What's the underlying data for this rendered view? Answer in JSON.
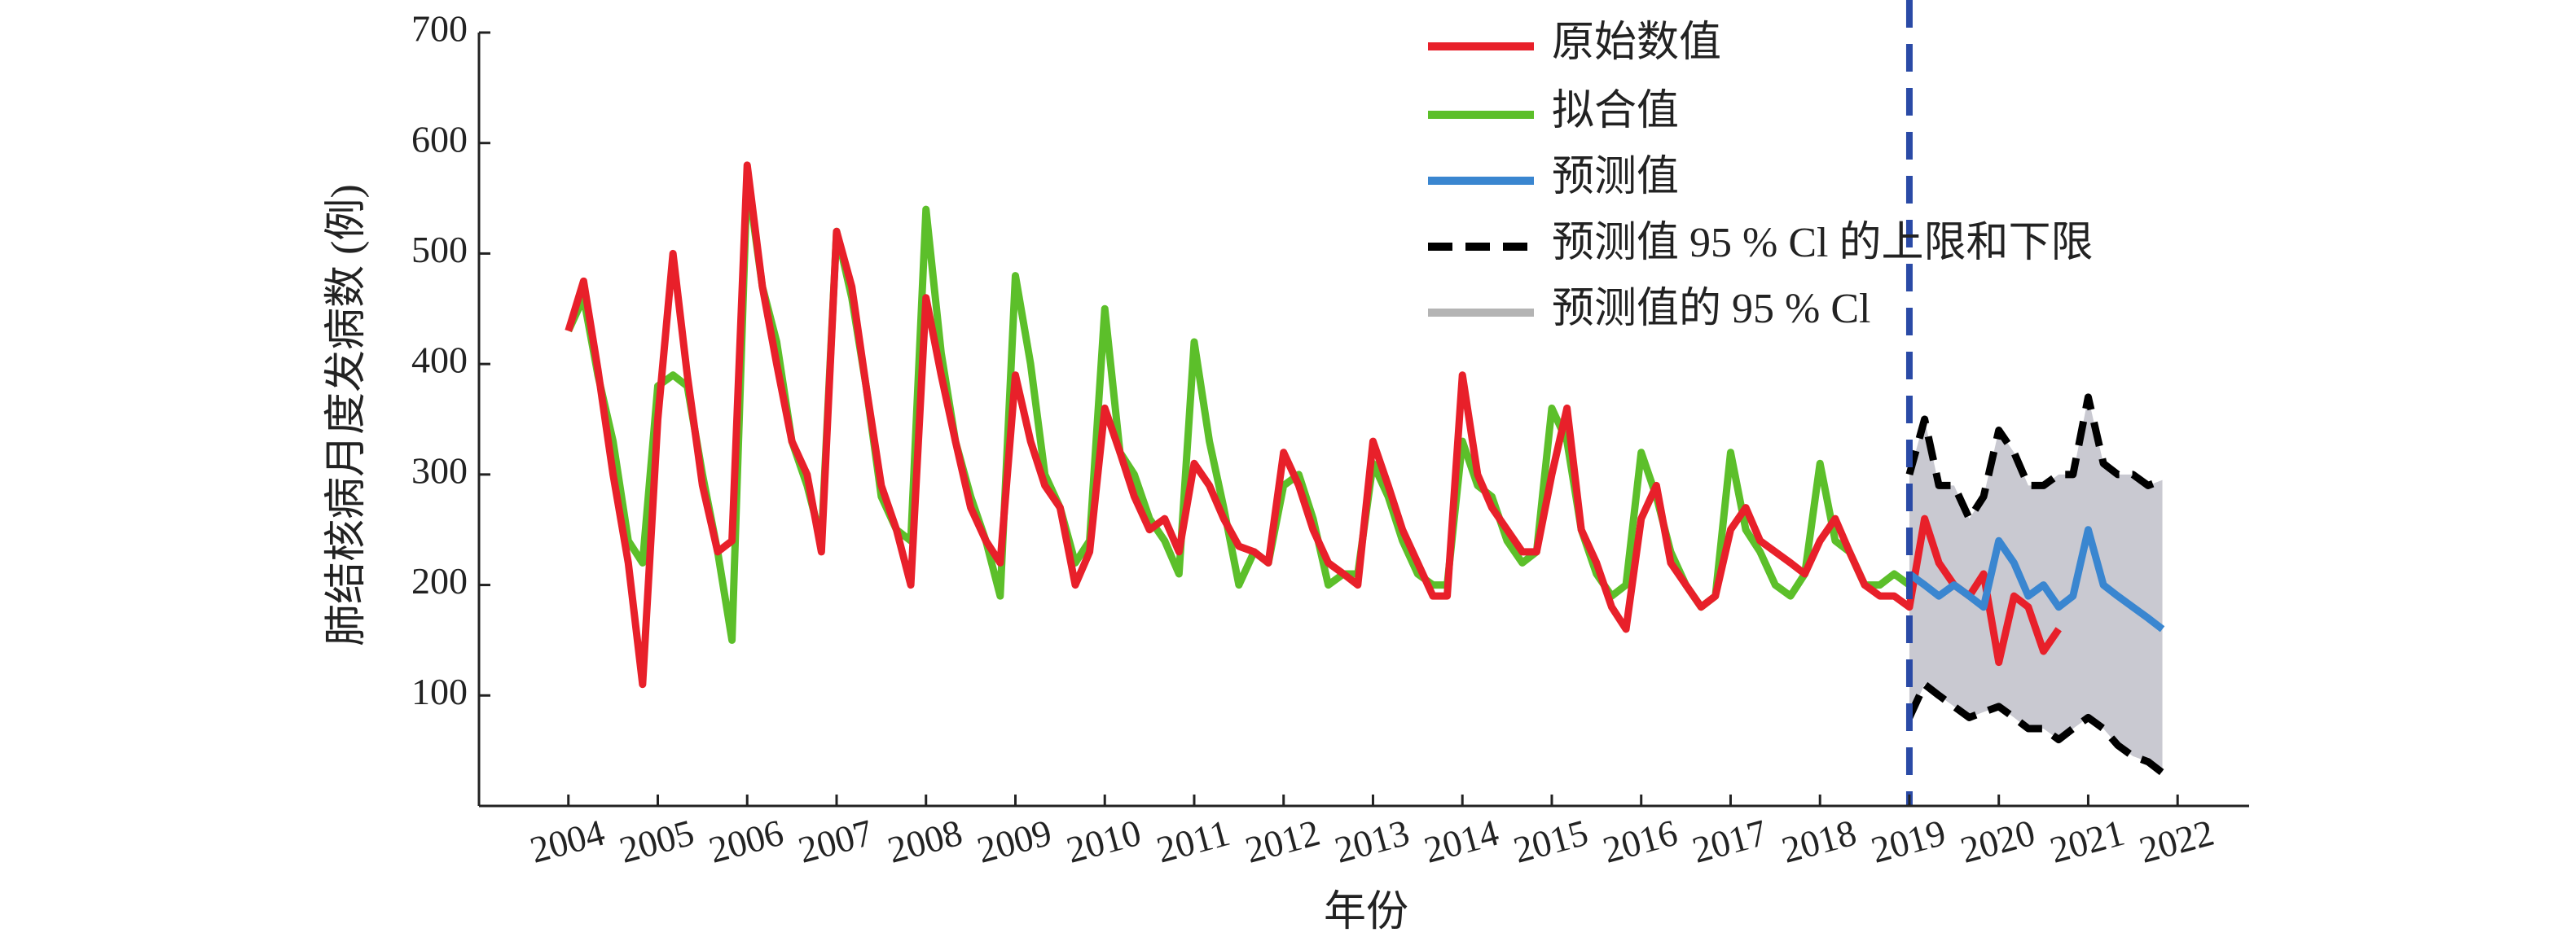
{
  "chart_data": {
    "type": "line",
    "ylabel": "肺结核病月度发病数 (例)",
    "xlabel": "年份",
    "xlim": [
      2003,
      2022.8
    ],
    "ylim": [
      0,
      700
    ],
    "xticks": [
      2004,
      2005,
      2006,
      2007,
      2008,
      2009,
      2010,
      2011,
      2012,
      2013,
      2014,
      2015,
      2016,
      2017,
      2018,
      2019,
      2020,
      2021,
      2022
    ],
    "yticks": [
      100,
      200,
      300,
      400,
      500,
      600,
      700
    ],
    "forecast_start": 2019,
    "forecast_line_color": "#2a4aa6",
    "x": [
      2004,
      2004.17,
      2004.33,
      2004.5,
      2004.67,
      2004.83,
      2005,
      2005.17,
      2005.33,
      2005.5,
      2005.67,
      2005.83,
      2006,
      2006.17,
      2006.33,
      2006.5,
      2006.67,
      2006.83,
      2007,
      2007.17,
      2007.33,
      2007.5,
      2007.67,
      2007.83,
      2008,
      2008.17,
      2008.33,
      2008.5,
      2008.67,
      2008.83,
      2009,
      2009.17,
      2009.33,
      2009.5,
      2009.67,
      2009.83,
      2010,
      2010.17,
      2010.33,
      2010.5,
      2010.67,
      2010.83,
      2011,
      2011.17,
      2011.33,
      2011.5,
      2011.67,
      2011.83,
      2012,
      2012.17,
      2012.33,
      2012.5,
      2012.67,
      2012.83,
      2013,
      2013.17,
      2013.33,
      2013.5,
      2013.67,
      2013.83,
      2014,
      2014.17,
      2014.33,
      2014.5,
      2014.67,
      2014.83,
      2015,
      2015.17,
      2015.33,
      2015.5,
      2015.67,
      2015.83,
      2016,
      2016.17,
      2016.33,
      2016.5,
      2016.67,
      2016.83,
      2017,
      2017.17,
      2017.33,
      2017.5,
      2017.67,
      2017.83,
      2018,
      2018.17,
      2018.33,
      2018.5,
      2018.67,
      2018.83,
      2019,
      2019.17,
      2019.33,
      2019.5,
      2019.67,
      2019.83,
      2020,
      2020.17,
      2020.33,
      2020.5,
      2020.67,
      2020.83,
      2021,
      2021.17,
      2021.33,
      2021.5,
      2021.67,
      2021.83
    ],
    "series": [
      {
        "name": "原始数值",
        "color": "#e8202a",
        "values": [
          430,
          475,
          395,
          300,
          220,
          110,
          350,
          500,
          390,
          290,
          230,
          240,
          580,
          470,
          400,
          330,
          300,
          230,
          520,
          470,
          380,
          290,
          250,
          200,
          460,
          390,
          330,
          270,
          240,
          220,
          390,
          330,
          290,
          270,
          200,
          230,
          360,
          320,
          280,
          250,
          260,
          230,
          310,
          290,
          260,
          235,
          230,
          220,
          320,
          290,
          250,
          220,
          210,
          200,
          330,
          290,
          250,
          220,
          190,
          190,
          390,
          300,
          270,
          250,
          230,
          230,
          300,
          360,
          250,
          220,
          180,
          160,
          260,
          290,
          220,
          200,
          180,
          190,
          250,
          270,
          240,
          230,
          220,
          210,
          240,
          260,
          230,
          200,
          190,
          190,
          180,
          260,
          220,
          200,
          190,
          210,
          130,
          190,
          180,
          140,
          160,
          null,
          null,
          null,
          null,
          null,
          null,
          null
        ]
      },
      {
        "name": "拟合值",
        "color": "#5cbf2a",
        "values": [
          430,
          460,
          390,
          330,
          240,
          220,
          380,
          390,
          380,
          300,
          230,
          150,
          570,
          470,
          420,
          330,
          290,
          240,
          520,
          460,
          380,
          280,
          250,
          240,
          540,
          410,
          330,
          280,
          240,
          190,
          480,
          400,
          300,
          270,
          220,
          240,
          450,
          320,
          300,
          260,
          240,
          210,
          420,
          330,
          270,
          200,
          230,
          220,
          290,
          300,
          260,
          200,
          210,
          210,
          310,
          280,
          240,
          210,
          200,
          200,
          330,
          290,
          280,
          240,
          220,
          230,
          360,
          330,
          250,
          210,
          190,
          200,
          320,
          280,
          230,
          200,
          180,
          190,
          320,
          250,
          230,
          200,
          190,
          210,
          310,
          240,
          230,
          200,
          200,
          210,
          200,
          null,
          null,
          null,
          null,
          null,
          null,
          null,
          null,
          null,
          null,
          null,
          null,
          null,
          null,
          null,
          null,
          null
        ]
      },
      {
        "name": "预测值",
        "color": "#3a86d0",
        "values": [
          null,
          null,
          null,
          null,
          null,
          null,
          null,
          null,
          null,
          null,
          null,
          null,
          null,
          null,
          null,
          null,
          null,
          null,
          null,
          null,
          null,
          null,
          null,
          null,
          null,
          null,
          null,
          null,
          null,
          null,
          null,
          null,
          null,
          null,
          null,
          null,
          null,
          null,
          null,
          null,
          null,
          null,
          null,
          null,
          null,
          null,
          null,
          null,
          null,
          null,
          null,
          null,
          null,
          null,
          null,
          null,
          null,
          null,
          null,
          null,
          null,
          null,
          null,
          null,
          null,
          null,
          null,
          null,
          null,
          null,
          null,
          null,
          null,
          null,
          null,
          null,
          null,
          null,
          null,
          null,
          null,
          null,
          null,
          null,
          null,
          null,
          null,
          null,
          null,
          null,
          210,
          200,
          190,
          200,
          190,
          180,
          240,
          220,
          190,
          200,
          180,
          190,
          250,
          200,
          190,
          180,
          170,
          160
        ]
      }
    ],
    "ci": {
      "name": "预测值 95 % Cl 的上限和下限",
      "color": "#000000",
      "band_name": "预测值的 95 % Cl",
      "band_color": "#c9c9d1",
      "upper": [
        null,
        null,
        null,
        null,
        null,
        null,
        null,
        null,
        null,
        null,
        null,
        null,
        null,
        null,
        null,
        null,
        null,
        null,
        null,
        null,
        null,
        null,
        null,
        null,
        null,
        null,
        null,
        null,
        null,
        null,
        null,
        null,
        null,
        null,
        null,
        null,
        null,
        null,
        null,
        null,
        null,
        null,
        null,
        null,
        null,
        null,
        null,
        null,
        null,
        null,
        null,
        null,
        null,
        null,
        null,
        null,
        null,
        null,
        null,
        null,
        null,
        null,
        null,
        null,
        null,
        null,
        null,
        null,
        null,
        null,
        null,
        null,
        null,
        null,
        null,
        null,
        null,
        null,
        null,
        null,
        null,
        null,
        null,
        null,
        null,
        null,
        null,
        null,
        null,
        null,
        300,
        350,
        290,
        290,
        260,
        280,
        340,
        320,
        290,
        290,
        300,
        300,
        370,
        310,
        300,
        300,
        290,
        295
      ],
      "lower": [
        null,
        null,
        null,
        null,
        null,
        null,
        null,
        null,
        null,
        null,
        null,
        null,
        null,
        null,
        null,
        null,
        null,
        null,
        null,
        null,
        null,
        null,
        null,
        null,
        null,
        null,
        null,
        null,
        null,
        null,
        null,
        null,
        null,
        null,
        null,
        null,
        null,
        null,
        null,
        null,
        null,
        null,
        null,
        null,
        null,
        null,
        null,
        null,
        null,
        null,
        null,
        null,
        null,
        null,
        null,
        null,
        null,
        null,
        null,
        null,
        null,
        null,
        null,
        null,
        null,
        null,
        null,
        null,
        null,
        null,
        null,
        null,
        null,
        null,
        null,
        null,
        null,
        null,
        null,
        null,
        null,
        null,
        null,
        null,
        null,
        null,
        null,
        null,
        null,
        null,
        80,
        110,
        100,
        90,
        80,
        85,
        90,
        80,
        70,
        70,
        60,
        70,
        80,
        70,
        55,
        45,
        40,
        30
      ]
    }
  }
}
